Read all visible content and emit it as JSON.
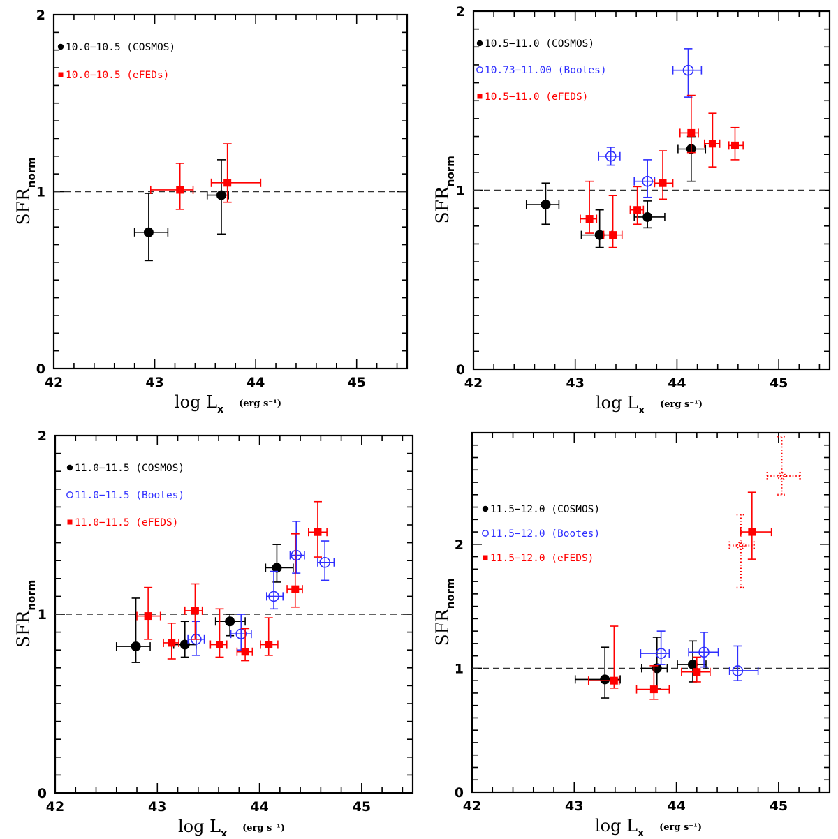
{
  "chart_data": [
    {
      "type": "scatter",
      "panel": "top-left",
      "xlabel": "log L",
      "xlabel_sub": "x",
      "xlabel_unit": "(erg s⁻¹)",
      "ylabel": "SFR",
      "ylabel_sub": "norm",
      "xlim": [
        42,
        45.5
      ],
      "ylim": [
        0,
        2
      ],
      "xticks": [
        42,
        43,
        44,
        45
      ],
      "yticks": [
        0,
        1,
        2
      ],
      "reference_line": 1,
      "legend_placement": "top-left",
      "series": [
        {
          "name": "10.0−10.5 (COSMOS)",
          "color": "#000000",
          "marker": "filled-circle",
          "points": [
            {
              "x": 42.94,
              "y": 0.77,
              "xlo": 42.8,
              "xhi": 43.13,
              "ylo": 0.61,
              "yhi": 0.99
            },
            {
              "x": 43.66,
              "y": 0.98,
              "xlo": 43.52,
              "xhi": 43.73,
              "ylo": 0.76,
              "yhi": 1.18
            }
          ]
        },
        {
          "name": "10.0−10.5 (eFEDs)",
          "color": "#ff0000",
          "marker": "filled-square",
          "points": [
            {
              "x": 43.25,
              "y": 1.01,
              "xlo": 42.96,
              "xhi": 43.38,
              "ylo": 0.9,
              "yhi": 1.16
            },
            {
              "x": 43.72,
              "y": 1.05,
              "xlo": 43.56,
              "xhi": 44.05,
              "ylo": 0.94,
              "yhi": 1.27
            }
          ]
        }
      ]
    },
    {
      "type": "scatter",
      "panel": "top-right",
      "xlabel": "log L",
      "xlabel_sub": "x",
      "xlabel_unit": "(erg s⁻¹)",
      "ylabel": "SFR",
      "ylabel_sub": "norm",
      "xlim": [
        42,
        45.5
      ],
      "ylim": [
        0,
        2
      ],
      "xticks": [
        42,
        43,
        44,
        45
      ],
      "yticks": [
        0,
        1,
        2
      ],
      "reference_line": 1,
      "legend_placement": "top-left",
      "series": [
        {
          "name": "10.5−11.0 (COSMOS)",
          "color": "#000000",
          "marker": "filled-circle",
          "points": [
            {
              "x": 42.71,
              "y": 0.92,
              "xlo": 42.52,
              "xhi": 42.84,
              "ylo": 0.81,
              "yhi": 1.04
            },
            {
              "x": 43.24,
              "y": 0.75,
              "xlo": 43.06,
              "xhi": 43.36,
              "ylo": 0.68,
              "yhi": 0.89
            },
            {
              "x": 43.71,
              "y": 0.85,
              "xlo": 43.58,
              "xhi": 43.88,
              "ylo": 0.79,
              "yhi": 0.94
            },
            {
              "x": 44.14,
              "y": 1.23,
              "xlo": 44.01,
              "xhi": 44.28,
              "ylo": 1.05,
              "yhi": 1.3
            }
          ]
        },
        {
          "name": "10.73−11.00 (Bootes)",
          "color": "#2f2fff",
          "marker": "open-circle",
          "points": [
            {
              "x": 43.35,
              "y": 1.19,
              "xlo": 43.23,
              "xhi": 43.44,
              "ylo": 1.14,
              "yhi": 1.24
            },
            {
              "x": 43.71,
              "y": 1.05,
              "xlo": 43.58,
              "xhi": 43.78,
              "ylo": 0.96,
              "yhi": 1.17
            },
            {
              "x": 44.11,
              "y": 1.67,
              "xlo": 43.96,
              "xhi": 44.24,
              "ylo": 1.52,
              "yhi": 1.79
            }
          ]
        },
        {
          "name": "10.5−11.0 (eFEDS)",
          "color": "#ff0000",
          "marker": "filled-square",
          "points": [
            {
              "x": 43.14,
              "y": 0.84,
              "xlo": 43.05,
              "xhi": 43.21,
              "ylo": 0.76,
              "yhi": 1.05
            },
            {
              "x": 43.37,
              "y": 0.75,
              "xlo": 43.28,
              "xhi": 43.46,
              "ylo": 0.68,
              "yhi": 0.97
            },
            {
              "x": 43.61,
              "y": 0.89,
              "xlo": 43.54,
              "xhi": 43.67,
              "ylo": 0.81,
              "yhi": 1.02
            },
            {
              "x": 43.86,
              "y": 1.04,
              "xlo": 43.78,
              "xhi": 43.96,
              "ylo": 0.95,
              "yhi": 1.22
            },
            {
              "x": 44.14,
              "y": 1.32,
              "xlo": 44.03,
              "xhi": 44.21,
              "ylo": 1.21,
              "yhi": 1.53
            },
            {
              "x": 44.35,
              "y": 1.26,
              "xlo": 44.27,
              "xhi": 44.42,
              "ylo": 1.13,
              "yhi": 1.43
            },
            {
              "x": 44.57,
              "y": 1.25,
              "xlo": 44.51,
              "xhi": 44.65,
              "ylo": 1.17,
              "yhi": 1.35
            }
          ]
        }
      ]
    },
    {
      "type": "scatter",
      "panel": "bottom-left",
      "xlabel": "log L",
      "xlabel_sub": "x",
      "xlabel_unit": "(erg s⁻¹)",
      "ylabel": "SFR",
      "ylabel_sub": "norm",
      "xlim": [
        42,
        45.5
      ],
      "ylim": [
        0,
        2
      ],
      "xticks": [
        42,
        43,
        44,
        45
      ],
      "yticks": [
        0,
        1,
        2
      ],
      "reference_line": 1,
      "legend_placement": "top-left",
      "series": [
        {
          "name": "11.0−11.5 (COSMOS)",
          "color": "#000000",
          "marker": "filled-circle",
          "points": [
            {
              "x": 42.79,
              "y": 0.82,
              "xlo": 42.6,
              "xhi": 42.93,
              "ylo": 0.73,
              "yhi": 1.09
            },
            {
              "x": 43.27,
              "y": 0.83,
              "xlo": 43.16,
              "xhi": 43.38,
              "ylo": 0.76,
              "yhi": 0.96
            },
            {
              "x": 43.71,
              "y": 0.96,
              "xlo": 43.57,
              "xhi": 43.86,
              "ylo": 0.88,
              "yhi": 1.0
            },
            {
              "x": 44.17,
              "y": 1.26,
              "xlo": 44.06,
              "xhi": 44.33,
              "ylo": 1.18,
              "yhi": 1.39
            }
          ]
        },
        {
          "name": "11.0−11.5 (Bootes)",
          "color": "#2f2fff",
          "marker": "open-circle",
          "points": [
            {
              "x": 43.38,
              "y": 0.86,
              "xlo": 43.3,
              "xhi": 43.46,
              "ylo": 0.77,
              "yhi": 0.96
            },
            {
              "x": 43.82,
              "y": 0.89,
              "xlo": 43.72,
              "xhi": 43.92,
              "ylo": 0.8,
              "yhi": 1.0
            },
            {
              "x": 44.14,
              "y": 1.1,
              "xlo": 44.07,
              "xhi": 44.23,
              "ylo": 1.03,
              "yhi": 1.24
            },
            {
              "x": 44.36,
              "y": 1.33,
              "xlo": 44.3,
              "xhi": 44.44,
              "ylo": 1.23,
              "yhi": 1.52
            },
            {
              "x": 44.64,
              "y": 1.29,
              "xlo": 44.57,
              "xhi": 44.73,
              "ylo": 1.19,
              "yhi": 1.41
            }
          ]
        },
        {
          "name": "11.0−11.5 (eFEDS)",
          "color": "#ff0000",
          "marker": "filled-square",
          "points": [
            {
              "x": 42.91,
              "y": 0.99,
              "xlo": 42.8,
              "xhi": 43.03,
              "ylo": 0.86,
              "yhi": 1.15
            },
            {
              "x": 43.14,
              "y": 0.84,
              "xlo": 43.06,
              "xhi": 43.21,
              "ylo": 0.75,
              "yhi": 0.95
            },
            {
              "x": 43.37,
              "y": 1.02,
              "xlo": 43.27,
              "xhi": 43.44,
              "ylo": 0.86,
              "yhi": 1.17
            },
            {
              "x": 43.61,
              "y": 0.83,
              "xlo": 43.52,
              "xhi": 43.68,
              "ylo": 0.76,
              "yhi": 1.03
            },
            {
              "x": 43.86,
              "y": 0.79,
              "xlo": 43.78,
              "xhi": 43.93,
              "ylo": 0.74,
              "yhi": 0.92
            },
            {
              "x": 44.09,
              "y": 0.83,
              "xlo": 44.01,
              "xhi": 44.18,
              "ylo": 0.77,
              "yhi": 0.98
            },
            {
              "x": 44.35,
              "y": 1.14,
              "xlo": 44.27,
              "xhi": 44.42,
              "ylo": 1.04,
              "yhi": 1.45
            },
            {
              "x": 44.57,
              "y": 1.46,
              "xlo": 44.48,
              "xhi": 44.66,
              "ylo": 1.32,
              "yhi": 1.63
            }
          ]
        }
      ]
    },
    {
      "type": "scatter",
      "panel": "bottom-right",
      "xlabel": "log L",
      "xlabel_sub": "x",
      "xlabel_unit": "(erg s⁻¹)",
      "ylabel": "SFR",
      "ylabel_sub": "norm",
      "xlim": [
        42,
        45.5
      ],
      "ylim": [
        0,
        2.9
      ],
      "xticks": [
        42,
        43,
        44,
        45
      ],
      "yticks": [
        0,
        1,
        2
      ],
      "reference_line": 1,
      "legend_placement": "upper-left",
      "series": [
        {
          "name": "11.5−12.0 (COSMOS)",
          "color": "#000000",
          "marker": "filled-circle",
          "points": [
            {
              "x": 43.3,
              "y": 0.91,
              "xlo": 43.01,
              "xhi": 43.45,
              "ylo": 0.76,
              "yhi": 1.17
            },
            {
              "x": 43.81,
              "y": 1.0,
              "xlo": 43.66,
              "xhi": 43.91,
              "ylo": 0.84,
              "yhi": 1.25
            },
            {
              "x": 44.16,
              "y": 1.03,
              "xlo": 44.01,
              "xhi": 44.29,
              "ylo": 0.89,
              "yhi": 1.22
            }
          ]
        },
        {
          "name": "11.5−12.0 (Bootes)",
          "color": "#2f2fff",
          "marker": "open-circle",
          "points": [
            {
              "x": 43.85,
              "y": 1.12,
              "xlo": 43.65,
              "xhi": 43.93,
              "ylo": 1.03,
              "yhi": 1.3
            },
            {
              "x": 44.27,
              "y": 1.13,
              "xlo": 44.12,
              "xhi": 44.41,
              "ylo": 1.01,
              "yhi": 1.29
            },
            {
              "x": 44.6,
              "y": 0.98,
              "xlo": 44.52,
              "xhi": 44.8,
              "ylo": 0.9,
              "yhi": 1.18
            }
          ]
        },
        {
          "name": "11.5−12.0 (eFEDS)",
          "color": "#ff0000",
          "marker": "filled-square",
          "points": [
            {
              "x": 43.39,
              "y": 0.9,
              "xlo": 43.14,
              "xhi": 43.44,
              "ylo": 0.84,
              "yhi": 1.34
            },
            {
              "x": 43.78,
              "y": 0.83,
              "xlo": 43.61,
              "xhi": 43.93,
              "ylo": 0.75,
              "yhi": 1.02
            },
            {
              "x": 44.2,
              "y": 0.97,
              "xlo": 44.05,
              "xhi": 44.33,
              "ylo": 0.89,
              "yhi": 1.09
            },
            {
              "x": 44.74,
              "y": 2.1,
              "xlo": 44.63,
              "xhi": 44.93,
              "ylo": 1.88,
              "yhi": 2.42
            }
          ]
        },
        {
          "name": "eFEDS (dotted, unlabeled)",
          "color": "#ff0000",
          "marker": "dotted-open-circle",
          "in_legend": false,
          "points": [
            {
              "x": 44.63,
              "y": 1.99,
              "xlo": 44.52,
              "xhi": 44.76,
              "ylo": 1.65,
              "yhi": 2.24
            },
            {
              "x": 45.03,
              "y": 2.55,
              "xlo": 44.89,
              "xhi": 45.21,
              "ylo": 2.4,
              "yhi": 2.87
            }
          ]
        }
      ]
    }
  ]
}
